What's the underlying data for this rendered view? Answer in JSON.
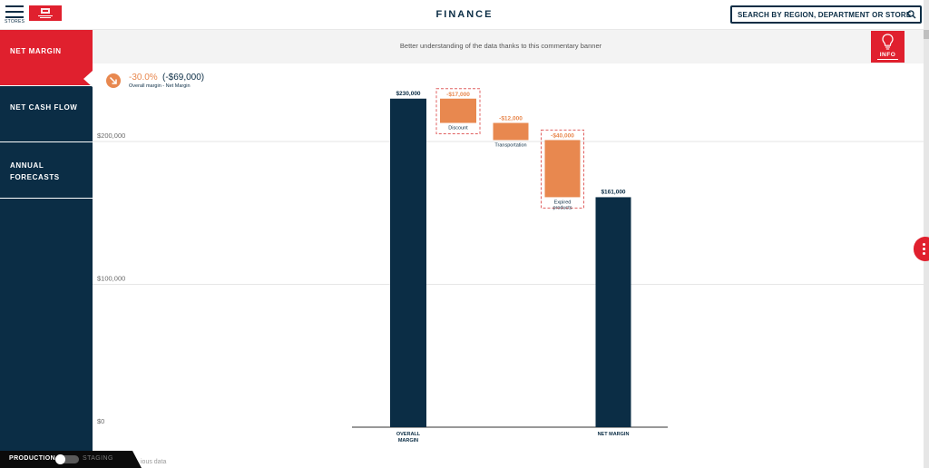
{
  "topbar": {
    "menu_label": "STORES",
    "title": "FINANCE",
    "search_placeholder": "SEARCH BY REGION, DEPARTMENT OR STORE"
  },
  "sidebar": {
    "items": [
      {
        "label": "NET MARGIN",
        "active": true
      },
      {
        "label": "NET CASH FLOW",
        "active": false
      },
      {
        "label": "ANNUAL FORECASTS",
        "active": false
      }
    ]
  },
  "banner": {
    "text": "Better understanding of the data thanks to this commentary banner",
    "info_label": "INFO"
  },
  "kpi": {
    "percent": "-30.0%",
    "absolute": "(-$69,000)",
    "subtitle": "Overall margin - Net Margin",
    "icon": "arrow-down-right-icon"
  },
  "environment": {
    "production_label": "PRODUCTION",
    "staging_label": "STAGING",
    "selected": "PRODUCTION",
    "footnote": "ious data"
  },
  "colors": {
    "navy": "#0b2d45",
    "accent_red": "#e0202e",
    "negative_orange": "#e8884f",
    "banner_bg": "#f3f3f3"
  },
  "chart_data": {
    "type": "waterfall",
    "y_ticks": [
      {
        "value": 0,
        "label": "$0"
      },
      {
        "value": 100000,
        "label": "$100,000"
      },
      {
        "value": 200000,
        "label": "$200,000"
      }
    ],
    "ylim": [
      0,
      230000
    ],
    "grid": true,
    "bars": [
      {
        "kind": "total",
        "category": "OVERALL MARGIN",
        "value": 230000,
        "value_label": "$230,000",
        "category_label": "OVERALL MARGIN"
      },
      {
        "kind": "delta",
        "category": "Discount",
        "value": -17000,
        "value_label": "-$17,000",
        "category_label": "Discount",
        "highlighted": true
      },
      {
        "kind": "delta",
        "category": "Transportation",
        "value": -12000,
        "value_label": "-$12,000",
        "category_label": "Transportation",
        "highlighted": false
      },
      {
        "kind": "delta",
        "category": "Expired products",
        "value": -40000,
        "value_label": "-$40,000",
        "category_label": "Expired products",
        "highlighted": true
      },
      {
        "kind": "total",
        "category": "NET MARGIN",
        "value": 161000,
        "value_label": "$161,000",
        "category_label": "NET MARGIN"
      }
    ]
  }
}
